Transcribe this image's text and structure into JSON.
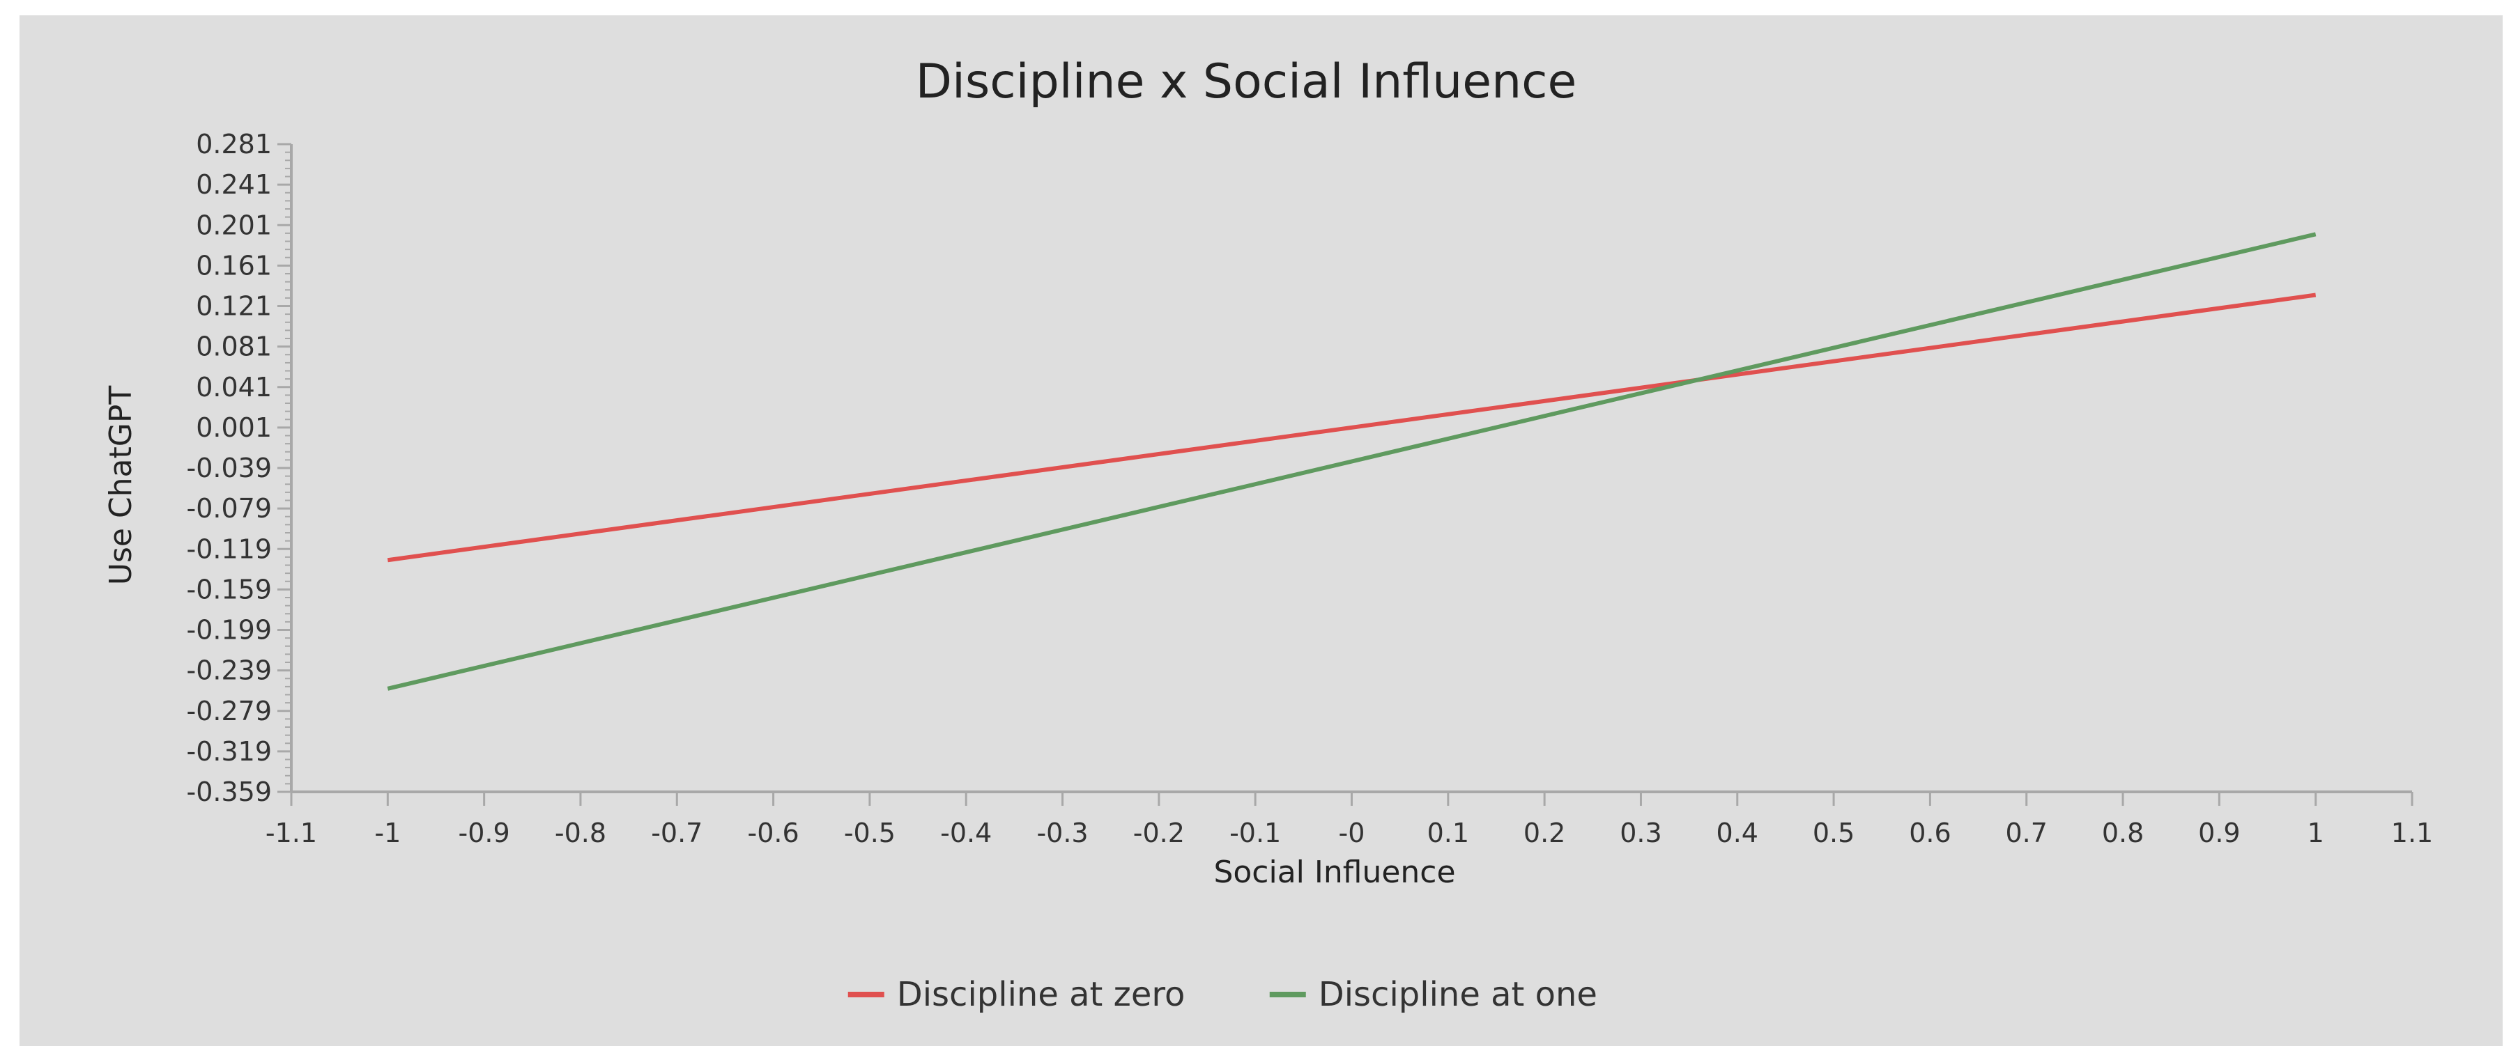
{
  "chart_data": {
    "type": "line",
    "title": "Discipline x Social Influence",
    "xlabel": "Social Influence",
    "ylabel": "Use ChatGPT",
    "xlim": [
      -1.1,
      1.1
    ],
    "ylim": [
      -0.359,
      0.281
    ],
    "x_ticks": [
      "-1.1",
      "-1",
      "-0.9",
      "-0.8",
      "-0.7",
      "-0.6",
      "-0.5",
      "-0.4",
      "-0.3",
      "-0.2",
      "-0.1",
      "-0",
      "0.1",
      "0.2",
      "0.3",
      "0.4",
      "0.5",
      "0.6",
      "0.7",
      "0.8",
      "0.9",
      "1",
      "1.1"
    ],
    "y_ticks": [
      "0.281",
      "0.241",
      "0.201",
      "0.161",
      "0.121",
      "0.081",
      "0.041",
      "0.001",
      "-0.039",
      "-0.079",
      "-0.119",
      "-0.159",
      "-0.199",
      "-0.239",
      "-0.279",
      "-0.319",
      "-0.359"
    ],
    "grid": false,
    "legend_position": "bottom-center",
    "series": [
      {
        "name": "Discipline at zero",
        "color": "#e0504f",
        "x": [
          -1,
          1
        ],
        "y": [
          -0.13,
          0.132
        ]
      },
      {
        "name": "Discipline at one",
        "color": "#5f9a5f",
        "x": [
          -1,
          1
        ],
        "y": [
          -0.257,
          0.192
        ]
      }
    ]
  }
}
